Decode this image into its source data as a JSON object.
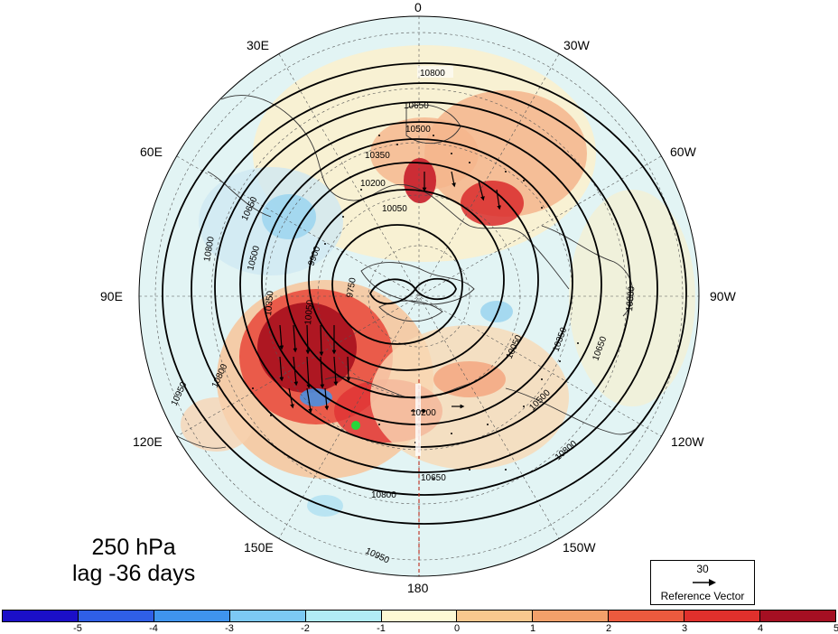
{
  "title": {
    "line1": "250 hPa",
    "line2": "lag -36 days"
  },
  "longitude_labels": [
    "0",
    "30W",
    "60W",
    "90W",
    "120W",
    "150W",
    "180",
    "150E",
    "120E",
    "90E",
    "60E",
    "30E"
  ],
  "contour_labels": [
    "10800",
    "10650",
    "10500",
    "10350",
    "10200",
    "10050",
    "9900",
    "9750",
    "10950"
  ],
  "reference_vector": {
    "value": "30",
    "label": "Reference Vector"
  },
  "colorbar": {
    "ticks": [
      "-5",
      "-4",
      "-3",
      "-2",
      "-1",
      "0",
      "1",
      "2",
      "3",
      "4",
      "5"
    ],
    "colors": [
      "#1b0fc8",
      "#2f5fe6",
      "#3f94ee",
      "#7cc9f4",
      "#b1ebf6",
      "#fdf9d4",
      "#f8c88e",
      "#f2a06a",
      "#ec5a3e",
      "#e0302c",
      "#a50f22"
    ]
  },
  "marker": {
    "color": "#27d63a"
  }
}
